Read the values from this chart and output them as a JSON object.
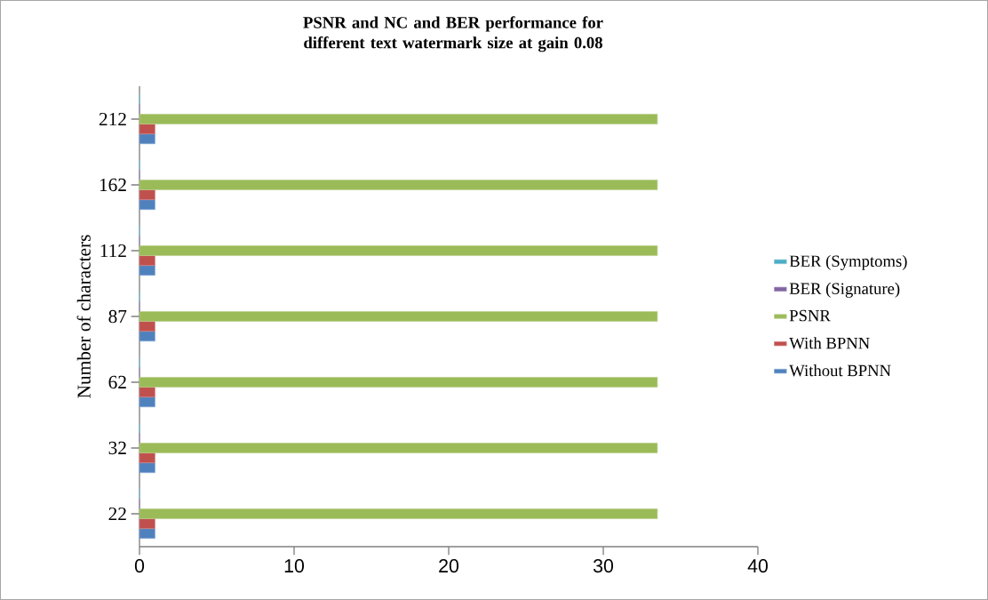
{
  "chart_data": {
    "type": "bar",
    "orientation": "horizontal",
    "title": "PSNR and NC and BER performance for different text watermark size at gain 0.08",
    "ylabel": "Number of characters",
    "categories": [
      "212",
      "162",
      "112",
      "87",
      "62",
      "32",
      "22"
    ],
    "series": [
      {
        "name": "Without BPNN",
        "color": "#4f81bd",
        "values": [
          1,
          1,
          1,
          1,
          1,
          1,
          1
        ]
      },
      {
        "name": "With BPNN",
        "color": "#c0504d",
        "values": [
          1,
          1,
          1,
          1,
          1,
          1,
          1
        ]
      },
      {
        "name": "PSNR",
        "color": "#9bbb59",
        "values": [
          33.5,
          33.5,
          33.5,
          33.5,
          33.5,
          33.5,
          33.5
        ]
      },
      {
        "name": "BER (Signature)",
        "color": "#8064a2",
        "values": [
          0,
          0,
          0,
          0,
          0,
          0,
          0
        ]
      },
      {
        "name": "BER (Symptoms)",
        "color": "#4bacc6",
        "values": [
          0,
          0,
          0,
          0,
          0,
          0,
          0
        ]
      }
    ],
    "xlim": [
      0,
      40
    ],
    "xticks": [
      0,
      10,
      20,
      30,
      40
    ],
    "legend": "right"
  }
}
